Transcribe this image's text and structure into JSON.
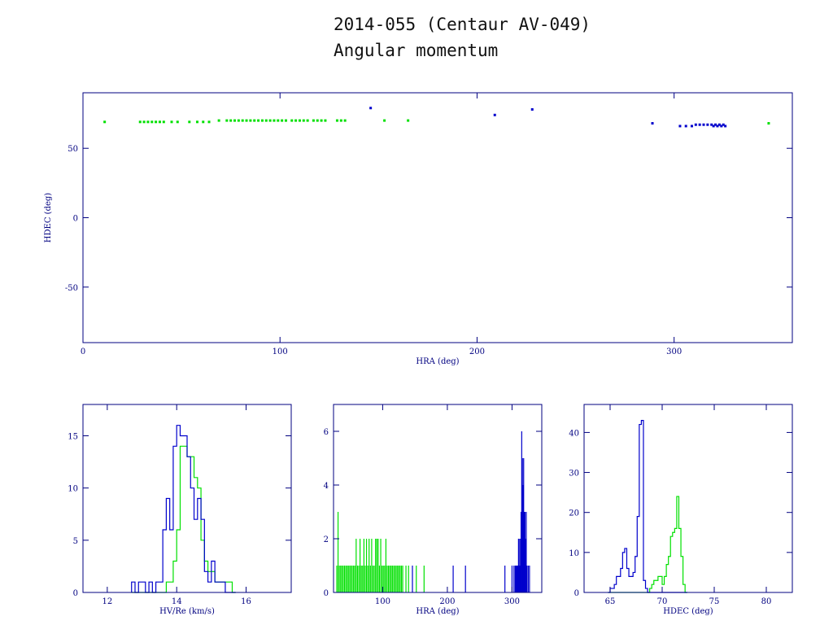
{
  "title": {
    "line1": "2014-055 (Centaur AV-049)",
    "line2": "Angular momentum"
  },
  "colors": {
    "axis": "#000080",
    "series_a": "#00e000",
    "series_b": "#0000cc"
  },
  "chart_data": [
    {
      "id": "scatter",
      "type": "scatter",
      "xlabel": "HRA (deg)",
      "ylabel": "HDEC (deg)",
      "xlim": [
        0,
        360
      ],
      "ylim": [
        -90,
        90
      ],
      "xticks": [
        0,
        100,
        200,
        300
      ],
      "yticks": [
        50,
        0,
        -50
      ],
      "series": [
        {
          "color": "green",
          "points": [
            [
              11,
              69
            ],
            [
              29,
              69
            ],
            [
              31,
              69
            ],
            [
              33,
              69
            ],
            [
              35,
              69
            ],
            [
              37,
              69
            ],
            [
              39,
              69
            ],
            [
              41,
              69
            ],
            [
              45,
              69
            ],
            [
              48,
              69
            ],
            [
              54,
              69
            ],
            [
              58,
              69
            ],
            [
              61,
              69
            ],
            [
              64,
              69
            ],
            [
              69,
              70
            ],
            [
              73,
              70
            ],
            [
              75,
              70
            ],
            [
              77,
              70
            ],
            [
              79,
              70
            ],
            [
              81,
              70
            ],
            [
              83,
              70
            ],
            [
              85,
              70
            ],
            [
              87,
              70
            ],
            [
              89,
              70
            ],
            [
              91,
              70
            ],
            [
              93,
              70
            ],
            [
              95,
              70
            ],
            [
              97,
              70
            ],
            [
              99,
              70
            ],
            [
              101,
              70
            ],
            [
              103,
              70
            ],
            [
              106,
              70
            ],
            [
              108,
              70
            ],
            [
              110,
              70
            ],
            [
              112,
              70
            ],
            [
              114,
              70
            ],
            [
              117,
              70
            ],
            [
              119,
              70
            ],
            [
              121,
              70
            ],
            [
              123,
              70
            ],
            [
              129,
              70
            ],
            [
              131,
              70
            ],
            [
              133,
              70
            ],
            [
              153,
              70
            ],
            [
              165,
              70
            ],
            [
              348,
              68
            ]
          ]
        },
        {
          "color": "blue",
          "points": [
            [
              146,
              79
            ],
            [
              209,
              74
            ],
            [
              228,
              78
            ],
            [
              289,
              68
            ],
            [
              303,
              66
            ],
            [
              306,
              66
            ],
            [
              309,
              66
            ],
            [
              311,
              67
            ],
            [
              313,
              67
            ],
            [
              315,
              67
            ],
            [
              317,
              67
            ],
            [
              319,
              67
            ],
            [
              320,
              66
            ],
            [
              321,
              67
            ],
            [
              322,
              66
            ],
            [
              323,
              67
            ],
            [
              324,
              66
            ],
            [
              325,
              67
            ],
            [
              326,
              66
            ]
          ]
        }
      ]
    },
    {
      "id": "hist-speed",
      "type": "bar",
      "xlabel": "HV/Re (km/s)",
      "ylabel": "",
      "xlim": [
        11.3,
        17.3
      ],
      "ylim": [
        0,
        18
      ],
      "xticks": [
        12,
        14,
        16
      ],
      "yticks": [
        0,
        5,
        10,
        15
      ],
      "bin_start": 12.7,
      "bin_width": 0.1,
      "series": [
        {
          "color": "green",
          "values": [
            0,
            0,
            0,
            0,
            0,
            0,
            0,
            0,
            0,
            0,
            1,
            1,
            3,
            6,
            14,
            14,
            13,
            13,
            11,
            10,
            5,
            3,
            2,
            2,
            1,
            1,
            1,
            1,
            1,
            0
          ]
        },
        {
          "color": "blue",
          "values": [
            1,
            0,
            1,
            1,
            0,
            1,
            0,
            1,
            1,
            6,
            9,
            6,
            14,
            16,
            15,
            15,
            13,
            10,
            7,
            9,
            7,
            2,
            1,
            3,
            1,
            1,
            1,
            0,
            0,
            0
          ]
        }
      ]
    },
    {
      "id": "hist-hra",
      "type": "bar",
      "xlabel": "HRA (deg)",
      "ylabel": "",
      "xlim": [
        24,
        346
      ],
      "ylim": [
        0,
        7
      ],
      "xticks": [
        100,
        200,
        300
      ],
      "yticks": [
        0,
        2,
        4,
        6
      ],
      "series": [
        {
          "color": "green",
          "spikes": [
            [
              29,
              1
            ],
            [
              31,
              3
            ],
            [
              33,
              1
            ],
            [
              35,
              1
            ],
            [
              37,
              1
            ],
            [
              39,
              1
            ],
            [
              41,
              1
            ],
            [
              43,
              1
            ],
            [
              45,
              1
            ],
            [
              47,
              1
            ],
            [
              49,
              1
            ],
            [
              51,
              1
            ],
            [
              53,
              1
            ],
            [
              55,
              1
            ],
            [
              57,
              1
            ],
            [
              59,
              2
            ],
            [
              61,
              1
            ],
            [
              63,
              1
            ],
            [
              65,
              2
            ],
            [
              67,
              1
            ],
            [
              69,
              1
            ],
            [
              71,
              2
            ],
            [
              73,
              1
            ],
            [
              75,
              2
            ],
            [
              77,
              1
            ],
            [
              79,
              2
            ],
            [
              81,
              1
            ],
            [
              83,
              2
            ],
            [
              85,
              1
            ],
            [
              87,
              1
            ],
            [
              89,
              2
            ],
            [
              91,
              2
            ],
            [
              93,
              2
            ],
            [
              95,
              1
            ],
            [
              97,
              2
            ],
            [
              99,
              1
            ],
            [
              101,
              1
            ],
            [
              103,
              1
            ],
            [
              105,
              2
            ],
            [
              107,
              1
            ],
            [
              109,
              1
            ],
            [
              111,
              1
            ],
            [
              113,
              1
            ],
            [
              115,
              1
            ],
            [
              117,
              1
            ],
            [
              119,
              1
            ],
            [
              121,
              1
            ],
            [
              123,
              1
            ],
            [
              125,
              1
            ],
            [
              127,
              1
            ],
            [
              129,
              1
            ],
            [
              131,
              1
            ],
            [
              136,
              1
            ],
            [
              140,
              1
            ],
            [
              152,
              1
            ],
            [
              164,
              1
            ]
          ]
        },
        {
          "color": "blue",
          "spikes": [
            [
              146,
              1
            ],
            [
              209,
              1
            ],
            [
              228,
              1
            ],
            [
              289,
              1
            ],
            [
              300,
              1
            ],
            [
              303,
              1
            ],
            [
              305,
              1
            ],
            [
              306,
              1
            ],
            [
              307,
              1
            ],
            [
              308,
              1
            ],
            [
              309,
              1
            ],
            [
              310,
              2
            ],
            [
              311,
              2
            ],
            [
              312,
              1
            ],
            [
              313,
              2
            ],
            [
              314,
              3
            ],
            [
              315,
              6
            ],
            [
              316,
              5
            ],
            [
              317,
              4
            ],
            [
              318,
              5
            ],
            [
              319,
              3
            ],
            [
              320,
              3
            ],
            [
              321,
              2
            ],
            [
              322,
              3
            ],
            [
              323,
              1
            ],
            [
              325,
              1
            ],
            [
              327,
              1
            ]
          ]
        }
      ]
    },
    {
      "id": "hist-hdec",
      "type": "bar",
      "xlabel": "HDEC (deg)",
      "ylabel": "",
      "xlim": [
        62.5,
        82.5
      ],
      "ylim": [
        0,
        47
      ],
      "xticks": [
        65,
        70,
        75,
        80
      ],
      "yticks": [
        0,
        10,
        20,
        30,
        40
      ],
      "bin_start": 64.8,
      "bin_width": 0.2,
      "series": [
        {
          "color": "green",
          "values": [
            0,
            0,
            0,
            0,
            0,
            0,
            0,
            0,
            0,
            0,
            0,
            0,
            0,
            0,
            0,
            0,
            0,
            0,
            0,
            0,
            1,
            2,
            3,
            3,
            4,
            4,
            2,
            4,
            7,
            9,
            14,
            15,
            16,
            24,
            16,
            9,
            2,
            0
          ]
        },
        {
          "color": "blue",
          "values": [
            0,
            1,
            1,
            2,
            4,
            4,
            6,
            10,
            11,
            6,
            4,
            4,
            5,
            9,
            19,
            42,
            43,
            3,
            1,
            0,
            0,
            0,
            0,
            0,
            0,
            0,
            0,
            0,
            0,
            0,
            0,
            0,
            0,
            0,
            0,
            0,
            0,
            0
          ]
        }
      ]
    }
  ]
}
